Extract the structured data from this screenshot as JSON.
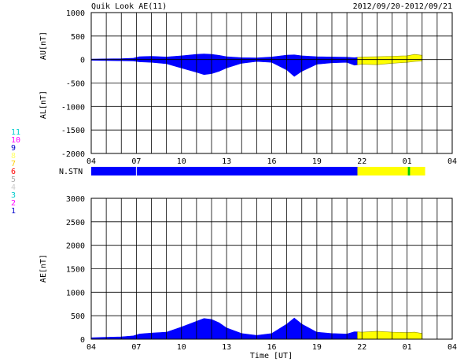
{
  "header": {
    "title": "Quik Look AE(11)",
    "date_range": "2012/09/20-2012/09/21"
  },
  "chart_data": [
    {
      "panel": "AU/AL",
      "type": "area",
      "ylabel_upper": "AU[nT]",
      "ylabel_lower": "AL[nT]",
      "ylim": [
        -2000,
        1000
      ],
      "yticks": [
        1000,
        500,
        0,
        -500,
        -1000,
        -1500,
        -2000
      ],
      "xticks": [
        "04",
        "07",
        "10",
        "13",
        "16",
        "19",
        "22",
        "01",
        "04"
      ],
      "x_range_hours": [
        4,
        28
      ],
      "grid": true,
      "series": [
        {
          "name": "AU",
          "x": [
            4,
            5,
            6,
            6.8,
            7.2,
            8,
            9,
            10,
            11,
            11.5,
            12,
            12.5,
            13,
            14,
            15,
            16,
            17,
            17.5,
            18,
            19,
            20,
            21,
            21.5,
            22,
            23,
            24,
            25,
            25.5,
            26
          ],
          "values": [
            10,
            15,
            20,
            30,
            60,
            70,
            55,
            80,
            110,
            120,
            110,
            90,
            60,
            40,
            35,
            55,
            95,
            100,
            80,
            60,
            55,
            50,
            40,
            55,
            60,
            70,
            80,
            110,
            90
          ]
        },
        {
          "name": "AL",
          "x": [
            4,
            5,
            6,
            6.8,
            7.2,
            8,
            9,
            10,
            11,
            11.5,
            12,
            12.5,
            13,
            14,
            15,
            16,
            17,
            17.5,
            18,
            19,
            20,
            21,
            21.5,
            22,
            23,
            24,
            25,
            25.5,
            26
          ],
          "values": [
            -15,
            -20,
            -25,
            -30,
            -50,
            -60,
            -90,
            -180,
            -270,
            -320,
            -300,
            -250,
            -180,
            -80,
            -40,
            -60,
            -220,
            -360,
            -250,
            -100,
            -70,
            -60,
            -120,
            -100,
            -110,
            -80,
            -60,
            -40,
            -30
          ]
        }
      ]
    },
    {
      "panel": "N.STN",
      "type": "bar",
      "label": "N.STN",
      "segments": [
        {
          "from": 4,
          "to": 7.0,
          "color": "#0000ff"
        },
        {
          "from": 7.0,
          "to": 21.7,
          "color": "#0000ff"
        },
        {
          "from": 21.7,
          "to": 25.05,
          "color": "#ffff00"
        },
        {
          "from": 25.05,
          "to": 25.2,
          "color": "#00cc00"
        },
        {
          "from": 25.2,
          "to": 26.2,
          "color": "#ffff00"
        }
      ],
      "station_legend": [
        {
          "label": "11",
          "color": "#00cccc"
        },
        {
          "label": "10",
          "color": "#ff00ff"
        },
        {
          "label": "9",
          "color": "#0000cc"
        },
        {
          "label": "8",
          "color": "#ffff66"
        },
        {
          "label": "7",
          "color": "#ffcc00"
        },
        {
          "label": "6",
          "color": "#ff0000"
        },
        {
          "label": "5",
          "color": "#aaaaaa"
        },
        {
          "label": "4",
          "color": "#cccccc"
        },
        {
          "label": "3",
          "color": "#00cccc"
        },
        {
          "label": "2",
          "color": "#ff00ff"
        },
        {
          "label": "1",
          "color": "#0000cc"
        }
      ]
    },
    {
      "panel": "AE",
      "type": "area",
      "ylabel": "AE[nT]",
      "xlabel": "Time [UT]",
      "ylim": [
        0,
        3000
      ],
      "yticks": [
        3000,
        2500,
        2000,
        1500,
        1000,
        500,
        0
      ],
      "xticks": [
        "04",
        "07",
        "10",
        "13",
        "16",
        "19",
        "22",
        "01",
        "04"
      ],
      "x_range_hours": [
        4,
        28
      ],
      "grid": true,
      "series": [
        {
          "name": "AE",
          "x": [
            4,
            5,
            6,
            6.8,
            7.2,
            8,
            9,
            10,
            11,
            11.5,
            12,
            12.5,
            13,
            14,
            15,
            16,
            17,
            17.5,
            18,
            19,
            20,
            21,
            21.5,
            22,
            23,
            24,
            25,
            25.5,
            26
          ],
          "values": [
            30,
            40,
            50,
            70,
            110,
            130,
            150,
            260,
            380,
            440,
            420,
            350,
            240,
            120,
            80,
            120,
            320,
            450,
            320,
            150,
            120,
            110,
            160,
            150,
            170,
            150,
            140,
            150,
            120
          ]
        }
      ]
    }
  ],
  "colors": {
    "fill_main": "#0000ff",
    "fill_partial": "#ffff00",
    "grid": "#000000",
    "partial_from_hour": 21.7
  }
}
